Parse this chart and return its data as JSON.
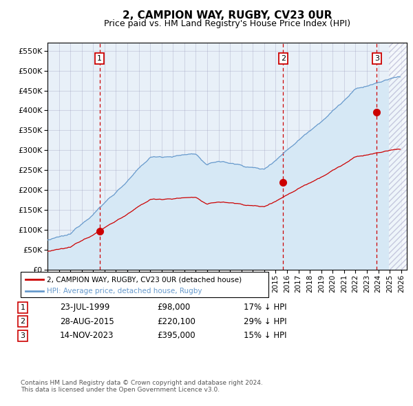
{
  "title": "2, CAMPION WAY, RUGBY, CV23 0UR",
  "subtitle": "Price paid vs. HM Land Registry's House Price Index (HPI)",
  "title_fontsize": 11,
  "subtitle_fontsize": 9,
  "y_ticks": [
    0,
    50000,
    100000,
    150000,
    200000,
    250000,
    300000,
    350000,
    400000,
    450000,
    500000,
    550000
  ],
  "hpi_color": "#6699cc",
  "price_color": "#cc0000",
  "hpi_fill_color": "#d6e8f5",
  "background_color": "#e8f0f8",
  "grid_color": "#9999bb",
  "sale_dates": [
    "1999-07-23",
    "2015-08-28",
    "2023-11-14"
  ],
  "sale_prices": [
    98000,
    220100,
    395000
  ],
  "sale_labels": [
    "1",
    "2",
    "3"
  ],
  "legend_property": "2, CAMPION WAY, RUGBY, CV23 0UR (detached house)",
  "legend_hpi": "HPI: Average price, detached house, Rugby",
  "table_rows": [
    [
      "1",
      "23-JUL-1999",
      "£98,000",
      "17% ↓ HPI"
    ],
    [
      "2",
      "28-AUG-2015",
      "£220,100",
      "29% ↓ HPI"
    ],
    [
      "3",
      "14-NOV-2023",
      "£395,000",
      "15% ↓ HPI"
    ]
  ],
  "footnote": "Contains HM Land Registry data © Crown copyright and database right 2024.\nThis data is licensed under the Open Government Licence v3.0."
}
